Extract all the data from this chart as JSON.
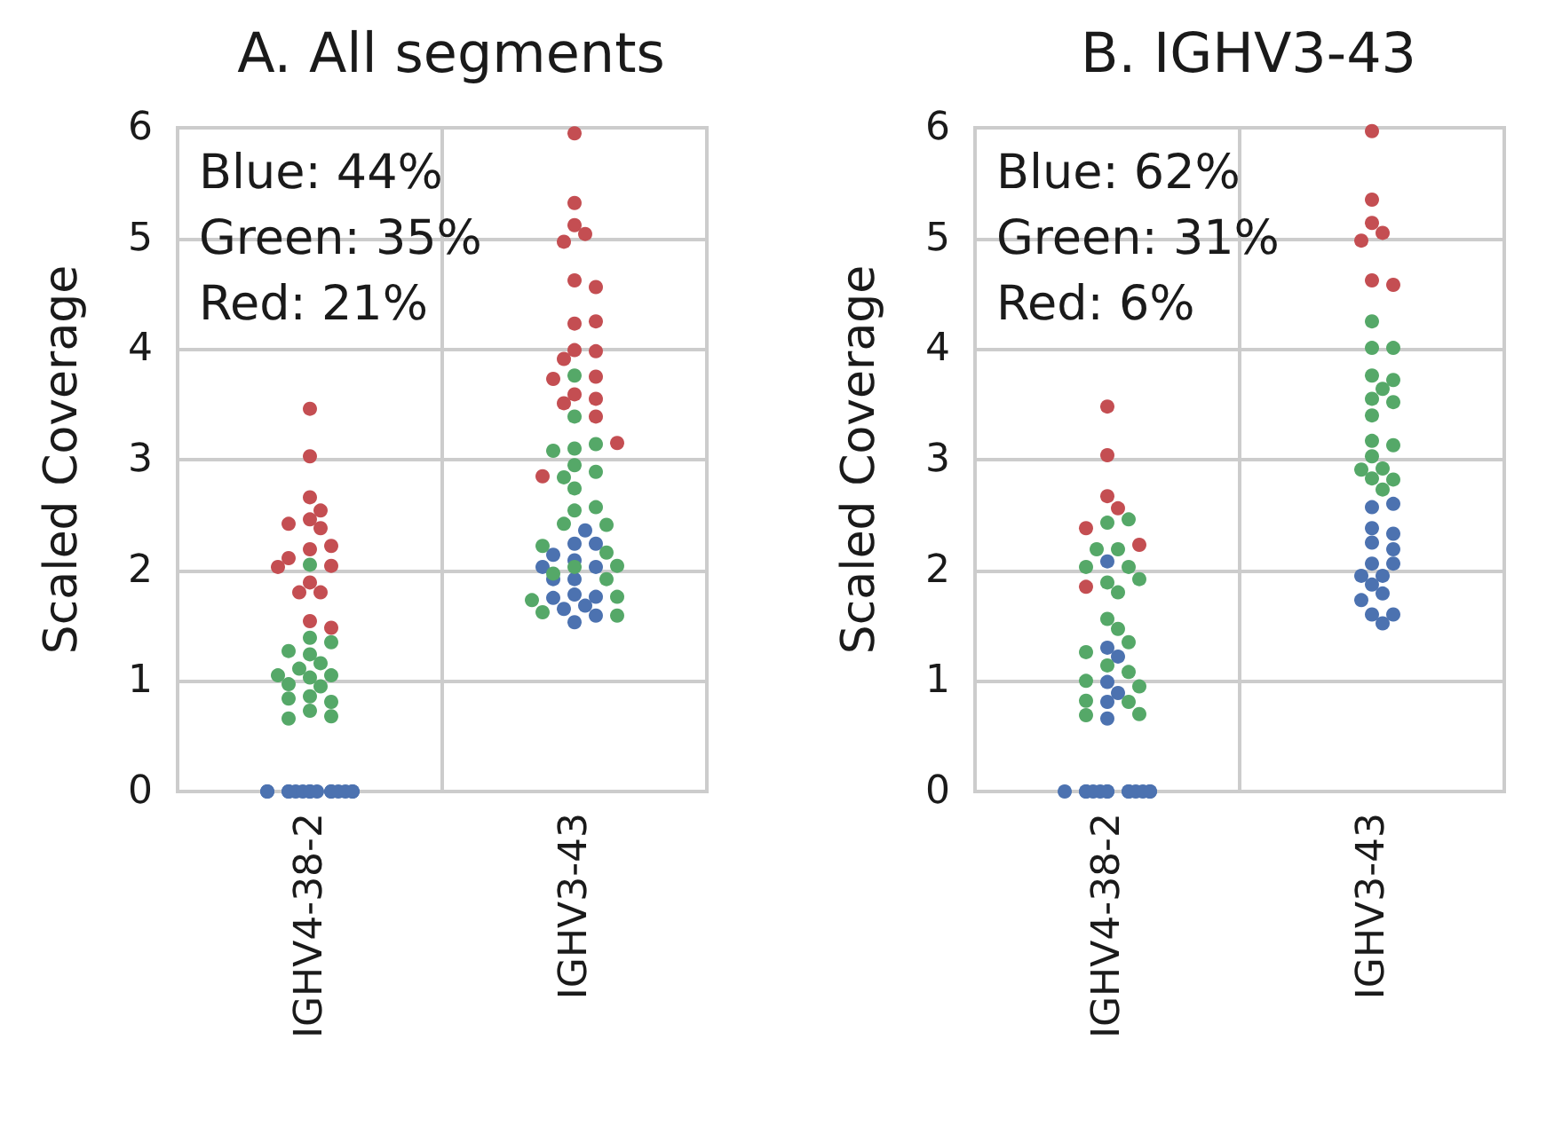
{
  "chart_data": [
    {
      "type": "scatter",
      "title": "A. All segments",
      "ylabel": "Scaled Coverage",
      "categories": [
        "IGHV4-38-2",
        "IGHV3-43"
      ],
      "ylim": [
        0,
        6
      ],
      "yticks": [
        0,
        1,
        2,
        3,
        4,
        5,
        6
      ],
      "grid": true,
      "marker": "circle",
      "annotations": [
        "Blue: 44%",
        "Green: 35%",
        "Red: 21%"
      ],
      "series": [
        {
          "color": "#4c72b0",
          "x": [
            "IGHV4-38-2",
            "IGHV4-38-2",
            "IGHV4-38-2",
            "IGHV4-38-2",
            "IGHV4-38-2",
            "IGHV4-38-2",
            "IGHV4-38-2",
            "IGHV4-38-2",
            "IGHV4-38-2",
            "IGHV4-38-2",
            "IGHV4-38-2",
            "IGHV4-38-2",
            "IGHV4-38-2",
            "IGHV4-38-2",
            "IGHV4-38-2",
            "IGHV3-43",
            "IGHV3-43",
            "IGHV3-43",
            "IGHV3-43",
            "IGHV3-43",
            "IGHV3-43",
            "IGHV3-43",
            "IGHV3-43",
            "IGHV3-43",
            "IGHV3-43",
            "IGHV3-43",
            "IGHV3-43",
            "IGHV3-43",
            "IGHV3-43",
            "IGHV3-43",
            "IGHV3-43"
          ],
          "values": [
            0,
            0,
            0,
            0,
            0,
            0,
            0,
            0,
            0,
            0,
            0,
            0,
            0,
            0,
            0,
            2.09,
            2.24,
            2.36,
            2.24,
            2.03,
            1.92,
            1.92,
            1.78,
            1.76,
            1.75,
            1.68,
            1.65,
            1.59,
            1.53,
            2.03,
            2.14
          ]
        },
        {
          "color": "#55a868",
          "x": [
            "IGHV4-38-2",
            "IGHV4-38-2",
            "IGHV4-38-2",
            "IGHV4-38-2",
            "IGHV4-38-2",
            "IGHV4-38-2",
            "IGHV4-38-2",
            "IGHV4-38-2",
            "IGHV4-38-2",
            "IGHV4-38-2",
            "IGHV4-38-2",
            "IGHV4-38-2",
            "IGHV4-38-2",
            "IGHV4-38-2",
            "IGHV4-38-2",
            "IGHV4-38-2",
            "IGHV4-38-2",
            "IGHV4-38-2",
            "IGHV3-43",
            "IGHV3-43",
            "IGHV3-43",
            "IGHV3-43",
            "IGHV3-43",
            "IGHV3-43",
            "IGHV3-43",
            "IGHV3-43",
            "IGHV3-43",
            "IGHV3-43",
            "IGHV3-43",
            "IGHV3-43",
            "IGHV3-43",
            "IGHV3-43",
            "IGHV3-43",
            "IGHV3-43",
            "IGHV3-43",
            "IGHV3-43",
            "IGHV3-43",
            "IGHV3-43",
            "IGHV3-43",
            "IGHV3-43",
            "IGHV3-43"
          ],
          "values": [
            1.39,
            1.24,
            1.35,
            1.16,
            1.11,
            1.03,
            1.05,
            0.95,
            0.97,
            0.86,
            0.81,
            0.84,
            0.73,
            0.68,
            0.66,
            2.05,
            1.27,
            1.05,
            3.76,
            3.39,
            3.1,
            3.14,
            3.08,
            2.95,
            2.89,
            2.84,
            2.74,
            2.54,
            2.57,
            2.42,
            2.41,
            2.22,
            2.16,
            2.04,
            1.97,
            1.92,
            1.76,
            1.73,
            1.62,
            1.59,
            2.03
          ]
        },
        {
          "color": "#c44e52",
          "x": [
            "IGHV4-38-2",
            "IGHV4-38-2",
            "IGHV4-38-2",
            "IGHV4-38-2",
            "IGHV4-38-2",
            "IGHV4-38-2",
            "IGHV4-38-2",
            "IGHV4-38-2",
            "IGHV4-38-2",
            "IGHV4-38-2",
            "IGHV4-38-2",
            "IGHV4-38-2",
            "IGHV4-38-2",
            "IGHV4-38-2",
            "IGHV4-38-2",
            "IGHV4-38-2",
            "IGHV4-38-2",
            "IGHV3-43",
            "IGHV3-43",
            "IGHV3-43",
            "IGHV3-43",
            "IGHV3-43",
            "IGHV3-43",
            "IGHV3-43",
            "IGHV3-43",
            "IGHV3-43",
            "IGHV3-43",
            "IGHV3-43",
            "IGHV3-43",
            "IGHV3-43",
            "IGHV3-43",
            "IGHV3-43",
            "IGHV3-43",
            "IGHV3-43",
            "IGHV3-43",
            "IGHV3-43",
            "IGHV3-43"
          ],
          "values": [
            3.46,
            3.03,
            2.66,
            2.54,
            2.46,
            2.38,
            2.42,
            2.19,
            2.22,
            2.11,
            2.04,
            2.03,
            1.89,
            1.8,
            1.8,
            1.54,
            1.48,
            5.95,
            5.32,
            5.12,
            5.04,
            4.97,
            4.62,
            4.56,
            4.23,
            4.25,
            3.99,
            3.98,
            3.91,
            3.75,
            3.73,
            3.59,
            3.55,
            3.39,
            3.51,
            3.15,
            2.85
          ]
        }
      ]
    },
    {
      "type": "scatter",
      "title": "B. IGHV3-43",
      "ylabel": "Scaled Coverage",
      "categories": [
        "IGHV4-38-2",
        "IGHV3-43"
      ],
      "ylim": [
        0,
        6
      ],
      "yticks": [
        0,
        1,
        2,
        3,
        4,
        5,
        6
      ],
      "grid": true,
      "marker": "circle",
      "annotations": [
        "Blue: 62%",
        "Green: 31%",
        "Red: 6%"
      ],
      "series": [
        {
          "color": "#4c72b0",
          "x": [
            "IGHV4-38-2",
            "IGHV4-38-2",
            "IGHV4-38-2",
            "IGHV4-38-2",
            "IGHV4-38-2",
            "IGHV4-38-2",
            "IGHV4-38-2",
            "IGHV4-38-2",
            "IGHV4-38-2",
            "IGHV4-38-2",
            "IGHV4-38-2",
            "IGHV4-38-2",
            "IGHV4-38-2",
            "IGHV4-38-2",
            "IGHV4-38-2",
            "IGHV4-38-2",
            "IGHV4-38-2",
            "IGHV4-38-2",
            "IGHV4-38-2",
            "IGHV4-38-2",
            "IGHV3-43",
            "IGHV3-43",
            "IGHV3-43",
            "IGHV3-43",
            "IGHV3-43",
            "IGHV3-43",
            "IGHV3-43",
            "IGHV3-43",
            "IGHV3-43",
            "IGHV3-43",
            "IGHV3-43",
            "IGHV3-43",
            "IGHV3-43",
            "IGHV3-43",
            "IGHV3-43",
            "IGHV3-43"
          ],
          "values": [
            0,
            0,
            0,
            0,
            0,
            0,
            0,
            0,
            0,
            0,
            0,
            0,
            0,
            1.3,
            0.99,
            0.89,
            0.81,
            0.66,
            2.08,
            1.22,
            2.57,
            2.6,
            2.38,
            2.25,
            2.19,
            2.06,
            1.95,
            1.95,
            1.87,
            1.79,
            1.73,
            1.6,
            1.52,
            1.6,
            2.06,
            2.33
          ]
        },
        {
          "color": "#55a868",
          "x": [
            "IGHV4-38-2",
            "IGHV4-38-2",
            "IGHV4-38-2",
            "IGHV4-38-2",
            "IGHV4-38-2",
            "IGHV4-38-2",
            "IGHV4-38-2",
            "IGHV4-38-2",
            "IGHV4-38-2",
            "IGHV4-38-2",
            "IGHV4-38-2",
            "IGHV4-38-2",
            "IGHV4-38-2",
            "IGHV4-38-2",
            "IGHV4-38-2",
            "IGHV4-38-2",
            "IGHV4-38-2",
            "IGHV4-38-2",
            "IGHV4-38-2",
            "IGHV4-38-2",
            "IGHV4-38-2",
            "IGHV3-43",
            "IGHV3-43",
            "IGHV3-43",
            "IGHV3-43",
            "IGHV3-43",
            "IGHV3-43",
            "IGHV3-43",
            "IGHV3-43",
            "IGHV3-43",
            "IGHV3-43",
            "IGHV3-43",
            "IGHV3-43",
            "IGHV3-43",
            "IGHV3-43",
            "IGHV3-43",
            "IGHV3-43",
            "IGHV3-43"
          ],
          "values": [
            2.43,
            2.46,
            2.19,
            2.19,
            2.03,
            2.03,
            1.89,
            1.92,
            1.8,
            1.56,
            1.47,
            1.35,
            1.26,
            1.14,
            1.08,
            1.0,
            0.95,
            0.82,
            0.81,
            0.69,
            0.7,
            4.25,
            4.01,
            4.01,
            3.76,
            3.72,
            3.64,
            3.55,
            3.52,
            3.4,
            3.17,
            3.13,
            3.03,
            2.92,
            2.91,
            2.83,
            2.73,
            2.82
          ]
        },
        {
          "color": "#c44e52",
          "x": [
            "IGHV4-38-2",
            "IGHV4-38-2",
            "IGHV4-38-2",
            "IGHV4-38-2",
            "IGHV4-38-2",
            "IGHV4-38-2",
            "IGHV4-38-2",
            "IGHV3-43",
            "IGHV3-43",
            "IGHV3-43",
            "IGHV3-43",
            "IGHV3-43",
            "IGHV3-43",
            "IGHV3-43"
          ],
          "values": [
            3.48,
            3.04,
            2.67,
            2.56,
            2.38,
            2.23,
            1.85,
            5.97,
            5.35,
            5.14,
            5.05,
            4.98,
            4.62,
            4.58
          ]
        }
      ]
    }
  ]
}
